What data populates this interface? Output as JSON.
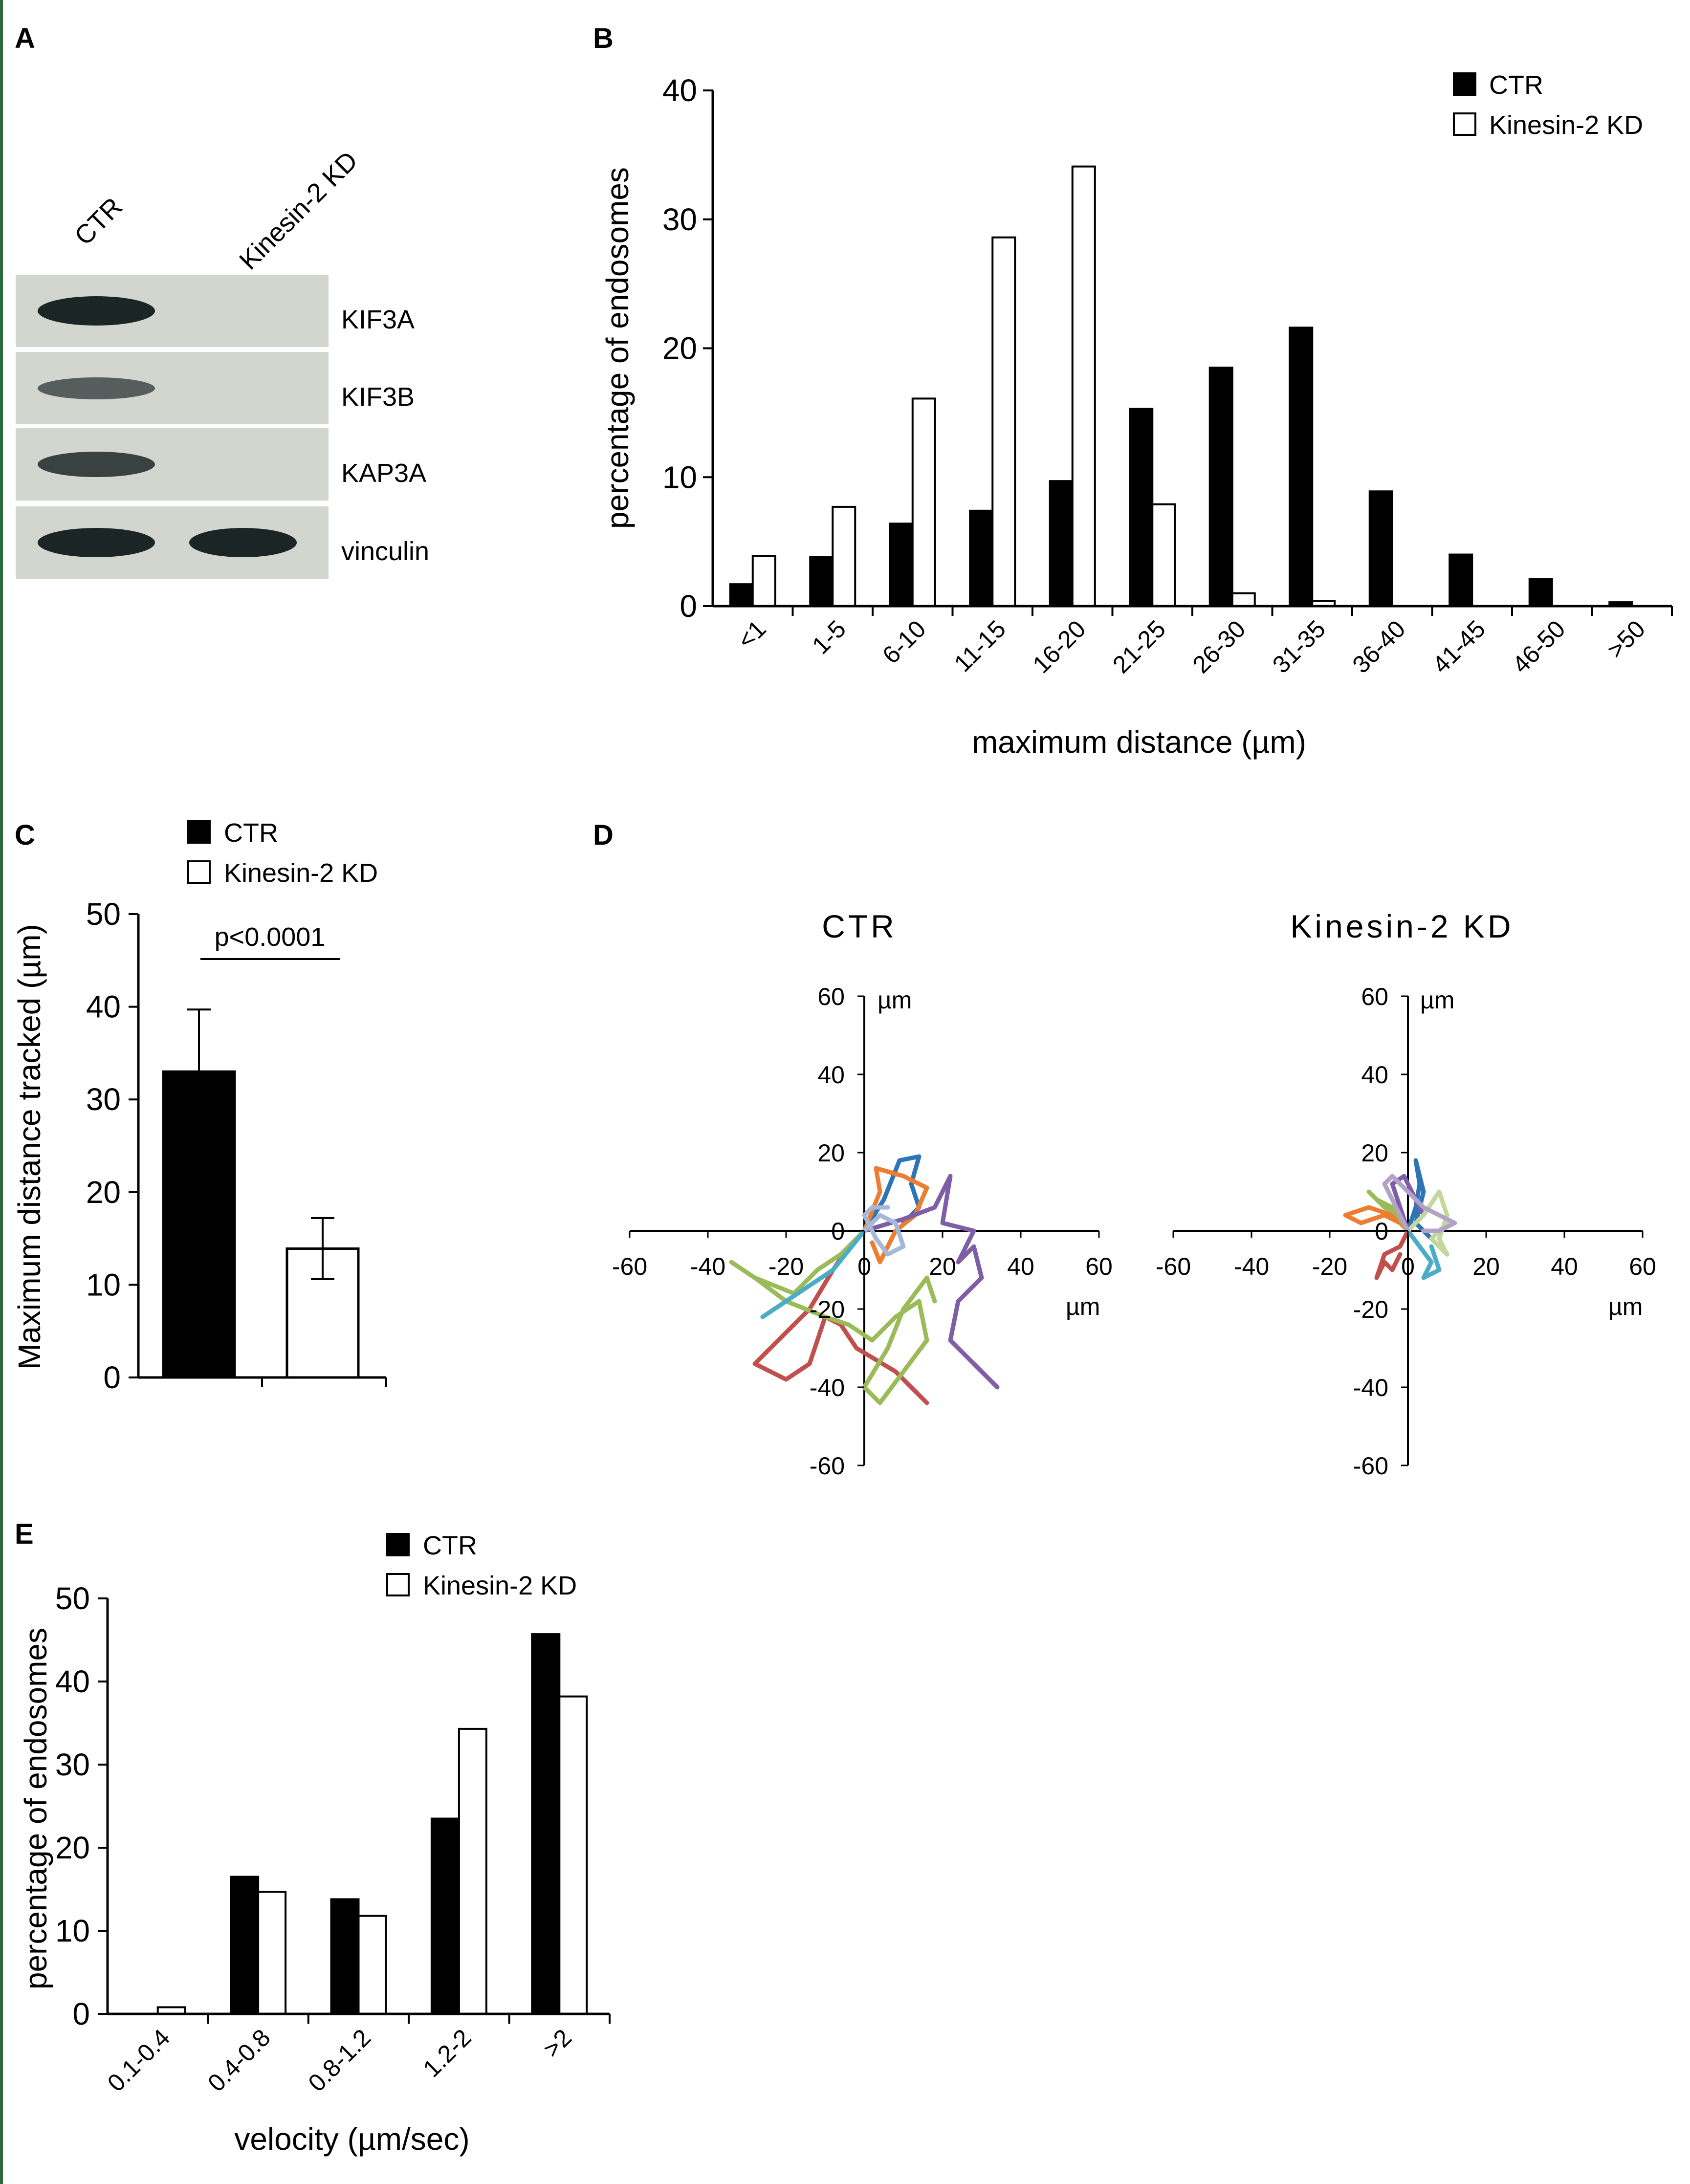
{
  "panels": {
    "A": "A",
    "B": "B",
    "C": "C",
    "D": "D",
    "E": "E"
  },
  "panel_a": {
    "lanes": [
      "CTR",
      "Kinesin-2 KD"
    ],
    "rows": [
      {
        "label": "KIF3A",
        "ctr_band": "strong",
        "kd_band": "none"
      },
      {
        "label": "KIF3B",
        "ctr_band": "weak",
        "kd_band": "none"
      },
      {
        "label": "KAP3A",
        "ctr_band": "medium",
        "kd_band": "none"
      },
      {
        "label": "vinculin",
        "ctr_band": "strong",
        "kd_band": "strong"
      }
    ],
    "colors": {
      "membrane": "#d3d6cf",
      "band": "#1b2526"
    }
  },
  "chart_data": [
    {
      "panel": "B",
      "type": "bar",
      "categories": [
        "<1",
        "1-5",
        "6-10",
        "11-15",
        "16-20",
        "21-25",
        "26-30",
        "31-35",
        "36-40",
        "41-45",
        "46-50",
        ">50"
      ],
      "series": [
        {
          "name": "CTR",
          "values": [
            1.7,
            3.8,
            6.4,
            7.4,
            9.7,
            15.3,
            18.5,
            21.6,
            8.9,
            4.0,
            2.1,
            0.3
          ]
        },
        {
          "name": "Kinesin-2 KD",
          "values": [
            3.9,
            7.7,
            16.1,
            28.6,
            34.1,
            7.9,
            1.0,
            0.4,
            0,
            0,
            0,
            0
          ]
        }
      ],
      "xlabel": "maximum distance (µm)",
      "ylabel": "percentage of endosomes",
      "ylim": [
        0,
        40
      ],
      "yticks": [
        0,
        10,
        20,
        30,
        40
      ],
      "legend": "top-right"
    },
    {
      "panel": "C",
      "type": "bar",
      "categories": [
        "CTR",
        "Kinesin-2 KD"
      ],
      "values": [
        33,
        13.9
      ],
      "errors": [
        6.7,
        3.3
      ],
      "ylabel": "Maximum distance tracked (µm)",
      "ylim": [
        0,
        50
      ],
      "yticks": [
        0,
        10,
        20,
        30,
        40,
        50
      ],
      "annotation": "p<0.0001",
      "legend": "top"
    },
    {
      "panel": "D",
      "type": "line",
      "plots": [
        {
          "title": "CTR",
          "xlim": [
            -60,
            60
          ],
          "ylim": [
            -60,
            60
          ],
          "ticks": [
            -60,
            -40,
            -20,
            0,
            20,
            40,
            60
          ],
          "unit": "µm",
          "tracks": [
            {
              "color": "#2e75b6",
              "points": [
                [
                  0,
                  0
                ],
                [
                  5,
                  8
                ],
                [
                  9,
                  18
                ],
                [
                  14,
                  19
                ],
                [
                  12,
                  12
                ],
                [
                  14,
                  6
                ],
                [
                  10,
                  2
                ]
              ]
            },
            {
              "color": "#ed7d31",
              "points": [
                [
                  0,
                  0
                ],
                [
                  4,
                  10
                ],
                [
                  3,
                  16
                ],
                [
                  10,
                  14
                ],
                [
                  16,
                  11
                ],
                [
                  13,
                  4
                ],
                [
                  8,
                  0
                ],
                [
                  4,
                  -8
                ],
                [
                  2,
                  -3
                ]
              ]
            },
            {
              "color": "#7f5ea8",
              "points": [
                [
                  0,
                  0
                ],
                [
                  10,
                  3
                ],
                [
                  18,
                  6
                ],
                [
                  22,
                  14
                ],
                [
                  20,
                  2
                ],
                [
                  28,
                  0
                ],
                [
                  24,
                  -8
                ],
                [
                  28,
                  -4
                ],
                [
                  30,
                  -12
                ],
                [
                  24,
                  -18
                ],
                [
                  22,
                  -28
                ],
                [
                  28,
                  -34
                ],
                [
                  34,
                  -40
                ]
              ]
            },
            {
              "color": "#c0504d",
              "points": [
                [
                  0,
                  0
                ],
                [
                  -4,
                  -4
                ],
                [
                  -8,
                  -10
                ],
                [
                  -14,
                  -20
                ],
                [
                  -20,
                  -26
                ],
                [
                  -24,
                  -30
                ],
                [
                  -28,
                  -34
                ],
                [
                  -20,
                  -38
                ],
                [
                  -14,
                  -34
                ],
                [
                  -10,
                  -22
                ],
                [
                  -6,
                  -24
                ],
                [
                  -2,
                  -30
                ],
                [
                  8,
                  -36
                ],
                [
                  16,
                  -44
                ]
              ]
            },
            {
              "color": "#9bbb59",
              "points": [
                [
                  0,
                  0
                ],
                [
                  -6,
                  -6
                ],
                [
                  -12,
                  -10
                ],
                [
                  -18,
                  -16
                ],
                [
                  -28,
                  -12
                ],
                [
                  -34,
                  -8
                ],
                [
                  -28,
                  -12
                ],
                [
                  -20,
                  -18
                ],
                [
                  -10,
                  -22
                ],
                [
                  -4,
                  -24
                ],
                [
                  2,
                  -28
                ],
                [
                  8,
                  -22
                ],
                [
                  14,
                  -18
                ],
                [
                  16,
                  -28
                ],
                [
                  10,
                  -36
                ],
                [
                  4,
                  -44
                ],
                [
                  0,
                  -40
                ],
                [
                  6,
                  -30
                ],
                [
                  10,
                  -20
                ],
                [
                  16,
                  -12
                ],
                [
                  18,
                  -18
                ]
              ]
            },
            {
              "color": "#4bacc6",
              "points": [
                [
                  0,
                  0
                ],
                [
                  -8,
                  -10
                ],
                [
                  -14,
                  -14
                ],
                [
                  -20,
                  -18
                ],
                [
                  -26,
                  -22
                ]
              ]
            },
            {
              "color": "#a5b8da",
              "points": [
                [
                  0,
                  0
                ],
                [
                  4,
                  4
                ],
                [
                  8,
                  2
                ],
                [
                  10,
                  -4
                ],
                [
                  6,
                  -6
                ],
                [
                  3,
                  -2
                ],
                [
                  0,
                  4
                ],
                [
                  2,
                  6
                ],
                [
                  6,
                  6
                ]
              ]
            }
          ]
        },
        {
          "title": "Kinesin-2 KD",
          "xlim": [
            -60,
            60
          ],
          "ylim": [
            -60,
            60
          ],
          "ticks": [
            -60,
            -40,
            -20,
            0,
            20,
            40,
            60
          ],
          "unit": "µm",
          "tracks": [
            {
              "color": "#2e75b6",
              "points": [
                [
                  0,
                  0
                ],
                [
                  2,
                  6
                ],
                [
                  3,
                  12
                ],
                [
                  2,
                  18
                ],
                [
                  4,
                  10
                ],
                [
                  2,
                  2
                ],
                [
                  6,
                  -2
                ],
                [
                  10,
                  -6
                ]
              ]
            },
            {
              "color": "#ed7d31",
              "points": [
                [
                  0,
                  0
                ],
                [
                  -4,
                  4
                ],
                [
                  -10,
                  6
                ],
                [
                  -16,
                  4
                ],
                [
                  -12,
                  2
                ],
                [
                  -6,
                  4
                ],
                [
                  -2,
                  2
                ]
              ]
            },
            {
              "color": "#c0504d",
              "points": [
                [
                  0,
                  0
                ],
                [
                  -2,
                  -4
                ],
                [
                  -6,
                  -6
                ],
                [
                  -8,
                  -12
                ],
                [
                  -6,
                  -8
                ],
                [
                  -4,
                  -10
                ],
                [
                  -2,
                  -6
                ]
              ]
            },
            {
              "color": "#9bbb59",
              "points": [
                [
                  0,
                  0
                ],
                [
                  -4,
                  6
                ],
                [
                  -8,
                  8
                ],
                [
                  -10,
                  10
                ],
                [
                  -6,
                  6
                ],
                [
                  -2,
                  4
                ]
              ]
            },
            {
              "color": "#4bacc6",
              "points": [
                [
                  0,
                  0
                ],
                [
                  3,
                  -4
                ],
                [
                  6,
                  -8
                ],
                [
                  4,
                  -12
                ],
                [
                  8,
                  -10
                ],
                [
                  6,
                  -4
                ]
              ]
            },
            {
              "color": "#7f5ea8",
              "points": [
                [
                  0,
                  0
                ],
                [
                  -2,
                  6
                ],
                [
                  -4,
                  12
                ],
                [
                  -1,
                  14
                ],
                [
                  2,
                  8
                ],
                [
                  4,
                  4
                ]
              ]
            },
            {
              "color": "#c4d79b",
              "points": [
                [
                  0,
                  0
                ],
                [
                  4,
                  4
                ],
                [
                  8,
                  10
                ],
                [
                  10,
                  4
                ],
                [
                  8,
                  -2
                ],
                [
                  10,
                  -6
                ],
                [
                  6,
                  -2
                ],
                [
                  10,
                  2
                ]
              ]
            },
            {
              "color": "#b3a2c7",
              "points": [
                [
                  0,
                  0
                ],
                [
                  -2,
                  4
                ],
                [
                  -6,
                  12
                ],
                [
                  -4,
                  14
                ],
                [
                  0,
                  10
                ],
                [
                  4,
                  6
                ],
                [
                  8,
                  4
                ],
                [
                  12,
                  2
                ],
                [
                  8,
                  0
                ],
                [
                  4,
                  0
                ]
              ]
            }
          ]
        }
      ]
    },
    {
      "panel": "E",
      "type": "bar",
      "categories": [
        "0.1-0.4",
        "0.4-0.8",
        "0.8-1.2",
        "1.2-2",
        ">2"
      ],
      "series": [
        {
          "name": "CTR",
          "values": [
            0,
            16.5,
            13.8,
            23.5,
            45.7
          ]
        },
        {
          "name": "Kinesin-2 KD",
          "values": [
            0.8,
            14.7,
            11.8,
            34.3,
            38.2
          ]
        }
      ],
      "xlabel": "velocity (µm/sec)",
      "ylabel": "percentage of endosomes",
      "ylim": [
        0,
        50
      ],
      "yticks": [
        0,
        10,
        20,
        30,
        40,
        50
      ],
      "legend": "top"
    }
  ]
}
